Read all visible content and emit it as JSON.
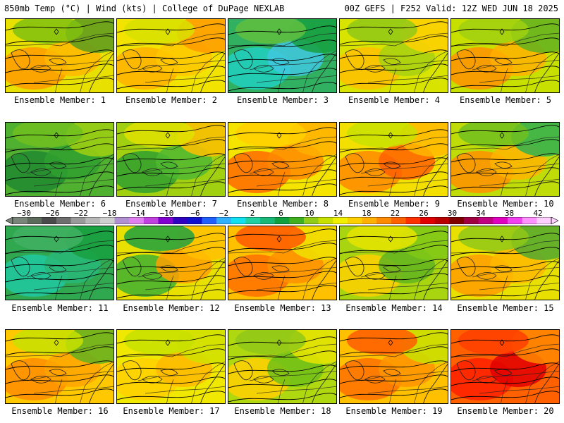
{
  "header": {
    "left": "850mb Temp (°C) | Wind (kts) | College of DuPage NEXLAB",
    "right": "00Z GEFS | F252 Valid: 12Z WED JUN 18 2025"
  },
  "colorbar": {
    "ticks": [
      "-30",
      "-26",
      "-22",
      "-18",
      "-14",
      "-10",
      "-6",
      "-2",
      "2",
      "6",
      "10",
      "14",
      "18",
      "22",
      "26",
      "30",
      "34",
      "38",
      "42"
    ],
    "colors": [
      "#7a857a",
      "#5c6b5c",
      "#4a4a4a",
      "#6e6e6e",
      "#9a9a9a",
      "#b8b8b8",
      "#cfcfcf",
      "#b090d0",
      "#e080f0",
      "#c040e0",
      "#8000d0",
      "#3000c0",
      "#1010d0",
      "#2060ff",
      "#30b0ff",
      "#10e0f0",
      "#20d0a0",
      "#18b878",
      "#10a040",
      "#40b020",
      "#90cc18",
      "#c8e000",
      "#f0f000",
      "#ffd000",
      "#ffb000",
      "#ff8c00",
      "#ff6000",
      "#ff3000",
      "#e00000",
      "#b80000",
      "#800000",
      "#a00040",
      "#c00080",
      "#e000c0",
      "#f040f0",
      "#ff90ff",
      "#ffd0ff"
    ]
  },
  "members": [
    {
      "label": "Ensemble Member: 1",
      "base": "#e8e000",
      "blobs": [
        "#ff9a00",
        "#ffb800",
        "#5a9a20",
        "#80c010"
      ]
    },
    {
      "label": "Ensemble Member: 2",
      "base": "#f2e400",
      "blobs": [
        "#ffb000",
        "#ffc800",
        "#ff9a00",
        "#d8e000"
      ]
    },
    {
      "label": "Ensemble Member: 3",
      "base": "#30b060",
      "blobs": [
        "#20d0c0",
        "#40c8e0",
        "#18a040",
        "#60c040"
      ]
    },
    {
      "label": "Ensemble Member: 4",
      "base": "#d8e400",
      "blobs": [
        "#ffc000",
        "#a8d010",
        "#ffd000",
        "#90c818"
      ]
    },
    {
      "label": "Ensemble Member: 5",
      "base": "#c8e000",
      "blobs": [
        "#ff9000",
        "#ffb000",
        "#60b020",
        "#a0d010"
      ]
    },
    {
      "label": "Ensemble Member: 6",
      "base": "#50b030",
      "blobs": [
        "#208a30",
        "#30a030",
        "#a0d010",
        "#70c020"
      ]
    },
    {
      "label": "Ensemble Member: 7",
      "base": "#a0d010",
      "blobs": [
        "#30a030",
        "#50b830",
        "#ffc000",
        "#e0e000"
      ]
    },
    {
      "label": "Ensemble Member: 8",
      "base": "#f4e400",
      "blobs": [
        "#ff6a00",
        "#ff8800",
        "#ffb000",
        "#ffd000"
      ]
    },
    {
      "label": "Ensemble Member: 9",
      "base": "#f4e000",
      "blobs": [
        "#ff8800",
        "#ff6000",
        "#ffb800",
        "#c8e000"
      ]
    },
    {
      "label": "Ensemble Member: 10",
      "base": "#c0dc08",
      "blobs": [
        "#ff9000",
        "#ffb400",
        "#30b050",
        "#70c020"
      ]
    },
    {
      "label": "Ensemble Member: 11",
      "base": "#30a850",
      "blobs": [
        "#20c8a0",
        "#28b878",
        "#18a040",
        "#40b060"
      ]
    },
    {
      "label": "Ensemble Member: 12",
      "base": "#e8e000",
      "blobs": [
        "#40b030",
        "#ffa000",
        "#ffc000",
        "#20a040"
      ]
    },
    {
      "label": "Ensemble Member: 13",
      "base": "#ffc000",
      "blobs": [
        "#ff7000",
        "#ff9000",
        "#f0e000",
        "#ff5800"
      ]
    },
    {
      "label": "Ensemble Member: 14",
      "base": "#a8d410",
      "blobs": [
        "#ffd000",
        "#60b420",
        "#80c818",
        "#e8e400"
      ]
    },
    {
      "label": "Ensemble Member: 15",
      "base": "#e8e000",
      "blobs": [
        "#ff9c00",
        "#ffb800",
        "#50a830",
        "#90c818"
      ]
    },
    {
      "label": "Ensemble Member: 16",
      "base": "#ffc800",
      "blobs": [
        "#ff8c00",
        "#ffa400",
        "#60b020",
        "#c8e000"
      ]
    },
    {
      "label": "Ensemble Member: 17",
      "base": "#f0e800",
      "blobs": [
        "#ffd000",
        "#ffb800",
        "#d0e000",
        "#c8e000"
      ]
    },
    {
      "label": "Ensemble Member: 18",
      "base": "#b0d810",
      "blobs": [
        "#ffd000",
        "#70c018",
        "#e8e400",
        "#90c818"
      ]
    },
    {
      "label": "Ensemble Member: 19",
      "base": "#ffc000",
      "blobs": [
        "#ff7000",
        "#ff9400",
        "#c8e000",
        "#ff5c00"
      ]
    },
    {
      "label": "Ensemble Member: 20",
      "base": "#ff6000",
      "blobs": [
        "#ff2000",
        "#e00000",
        "#ff8800",
        "#ff4000"
      ]
    }
  ]
}
